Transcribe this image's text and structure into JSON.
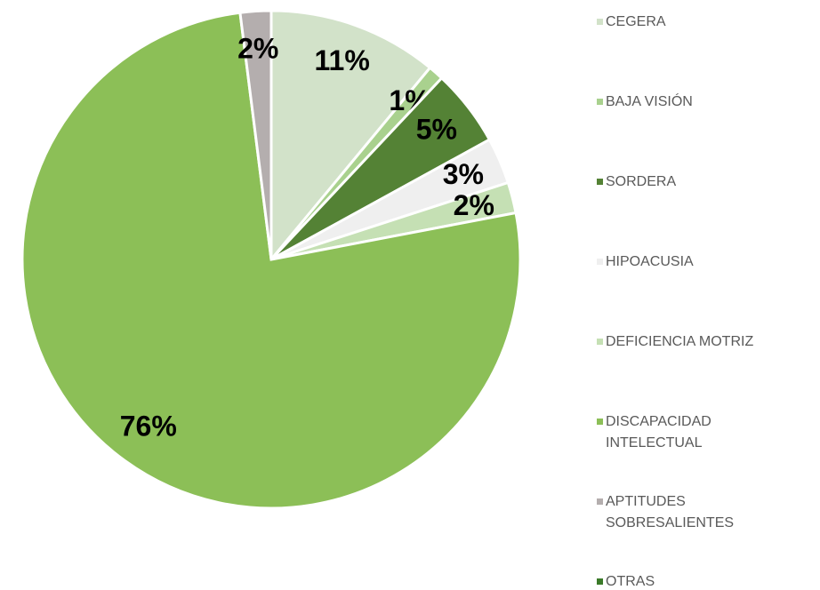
{
  "chart_data": {
    "type": "pie",
    "categories": [
      "CEGERA",
      "BAJA VISIÓN",
      "SORDERA",
      "HIPOACUSIA",
      "DEFICIENCIA MOTRIZ",
      "DISCAPACIDAD INTELECTUAL",
      "APTITUDES SOBRESALIENTES",
      "OTRAS"
    ],
    "values": [
      11,
      1,
      5,
      3,
      2,
      76,
      2,
      0
    ],
    "value_labels": [
      "11%",
      "1%",
      "5%",
      "3%",
      "2%",
      "76%",
      "2%",
      null
    ],
    "colors": [
      "#d2e2c9",
      "#a9d18e",
      "#548235",
      "#efefef",
      "#c5e0b4",
      "#8cbf57",
      "#b4aeae",
      "#3b7a29"
    ],
    "legend": "right"
  }
}
